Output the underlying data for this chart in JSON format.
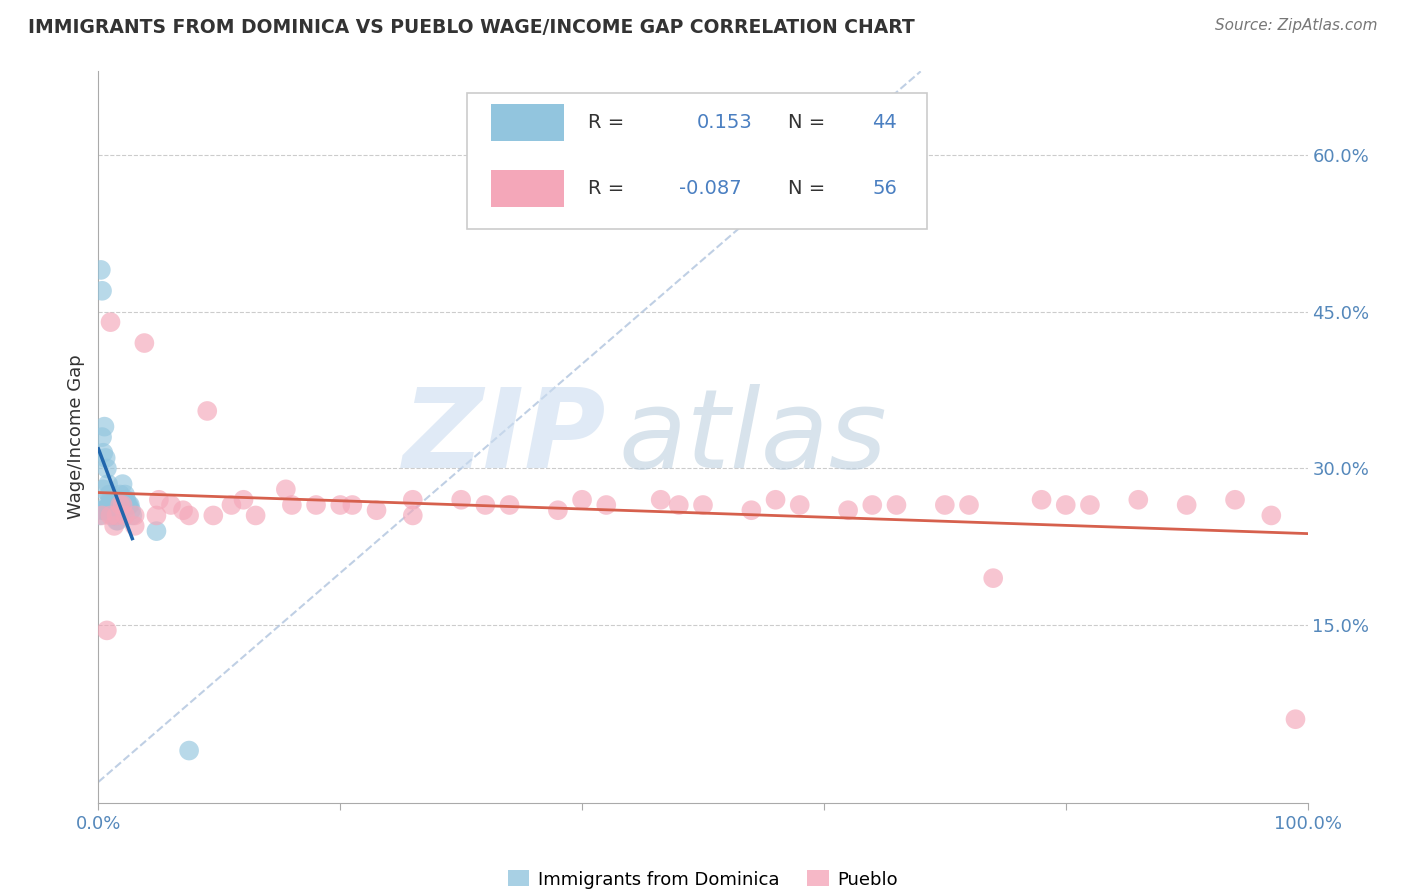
{
  "title": "IMMIGRANTS FROM DOMINICA VS PUEBLO WAGE/INCOME GAP CORRELATION CHART",
  "source": "Source: ZipAtlas.com",
  "ylabel": "Wage/Income Gap",
  "xlim": [
    0.0,
    1.0
  ],
  "ylim": [
    -0.02,
    0.68
  ],
  "blue_color": "#92c5de",
  "pink_color": "#f4a7b9",
  "blue_line_color": "#2166ac",
  "pink_line_color": "#d6604d",
  "dashed_line_color": "#b0c4de",
  "blue_x": [
    0.001,
    0.002,
    0.003,
    0.003,
    0.004,
    0.004,
    0.005,
    0.005,
    0.006,
    0.006,
    0.007,
    0.007,
    0.008,
    0.008,
    0.009,
    0.009,
    0.01,
    0.01,
    0.011,
    0.011,
    0.012,
    0.012,
    0.013,
    0.013,
    0.014,
    0.015,
    0.015,
    0.016,
    0.017,
    0.018,
    0.019,
    0.02,
    0.021,
    0.022,
    0.023,
    0.024,
    0.025,
    0.026,
    0.027,
    0.028,
    0.003,
    0.004,
    0.048,
    0.075
  ],
  "blue_y": [
    0.255,
    0.49,
    0.47,
    0.26,
    0.28,
    0.26,
    0.34,
    0.26,
    0.31,
    0.26,
    0.3,
    0.265,
    0.285,
    0.26,
    0.275,
    0.265,
    0.27,
    0.265,
    0.265,
    0.26,
    0.265,
    0.255,
    0.26,
    0.255,
    0.26,
    0.25,
    0.255,
    0.25,
    0.26,
    0.275,
    0.26,
    0.285,
    0.27,
    0.275,
    0.27,
    0.265,
    0.265,
    0.265,
    0.26,
    0.255,
    0.33,
    0.315,
    0.24,
    0.03
  ],
  "pink_x": [
    0.003,
    0.007,
    0.01,
    0.013,
    0.015,
    0.018,
    0.022,
    0.03,
    0.038,
    0.048,
    0.06,
    0.075,
    0.09,
    0.11,
    0.13,
    0.155,
    0.18,
    0.2,
    0.23,
    0.26,
    0.3,
    0.34,
    0.38,
    0.42,
    0.465,
    0.5,
    0.54,
    0.58,
    0.62,
    0.66,
    0.7,
    0.74,
    0.78,
    0.82,
    0.86,
    0.9,
    0.94,
    0.97,
    0.99,
    0.01,
    0.02,
    0.03,
    0.05,
    0.07,
    0.095,
    0.12,
    0.16,
    0.21,
    0.26,
    0.32,
    0.4,
    0.48,
    0.56,
    0.64,
    0.72,
    0.8
  ],
  "pink_y": [
    0.255,
    0.145,
    0.44,
    0.245,
    0.255,
    0.265,
    0.255,
    0.245,
    0.42,
    0.255,
    0.265,
    0.255,
    0.355,
    0.265,
    0.255,
    0.28,
    0.265,
    0.265,
    0.26,
    0.255,
    0.27,
    0.265,
    0.26,
    0.265,
    0.27,
    0.265,
    0.26,
    0.265,
    0.26,
    0.265,
    0.265,
    0.195,
    0.27,
    0.265,
    0.27,
    0.265,
    0.27,
    0.255,
    0.06,
    0.255,
    0.265,
    0.255,
    0.27,
    0.26,
    0.255,
    0.27,
    0.265,
    0.265,
    0.27,
    0.265,
    0.27,
    0.265,
    0.27,
    0.265,
    0.265,
    0.265
  ]
}
